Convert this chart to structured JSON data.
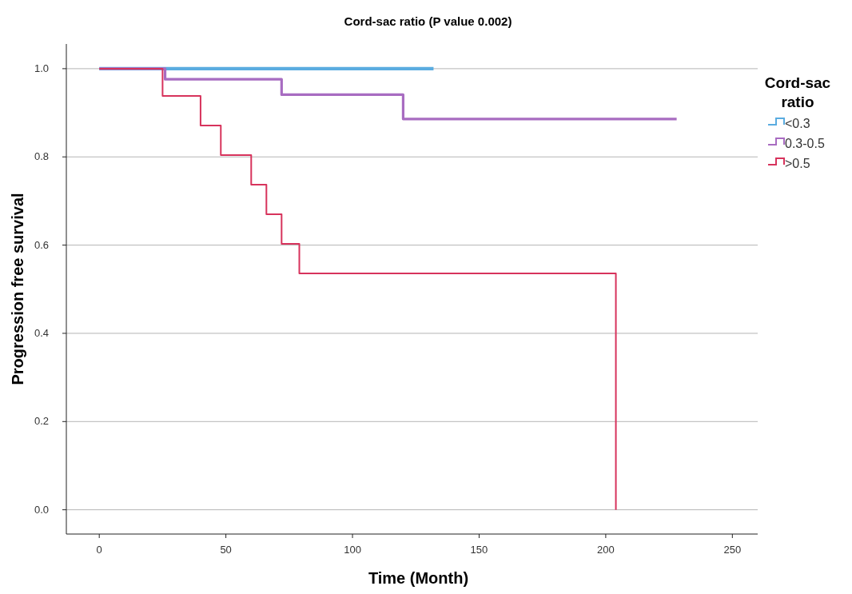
{
  "chart_data": {
    "type": "step",
    "title": "Cord-sac ratio (P value 0.002)",
    "xlabel": "Time (Month)",
    "ylabel": "Progression free survival",
    "legend_title": "Cord-sac ratio",
    "legend": "right",
    "grid": "y",
    "xlim": [
      -13,
      260
    ],
    "xticks": [
      0,
      50,
      100,
      150,
      200,
      250
    ],
    "ylim": [
      -0.055,
      1.056
    ],
    "yticks": [
      {
        "value": 0,
        "label": "0.0"
      },
      0.2,
      0.4,
      0.6,
      0.8,
      {
        "value": 1,
        "label": "1.0"
      }
    ],
    "series": [
      {
        "name": "<0.3",
        "color": "#5aace0",
        "x": [
          0,
          132
        ],
        "values": [
          1,
          1
        ]
      },
      {
        "name": "0.3-0.5",
        "color": "#a86cc1",
        "x": [
          0,
          26,
          72,
          120,
          228
        ],
        "values": [
          1,
          0.976,
          0.941,
          0.886,
          0.886
        ]
      },
      {
        "name": ">0.5",
        "color": "#d7335c",
        "x": [
          0,
          25,
          40,
          48,
          60,
          66,
          72,
          79,
          204
        ],
        "values": [
          1,
          0.938,
          0.871,
          0.804,
          0.737,
          0.67,
          0.603,
          0.536,
          0
        ]
      }
    ]
  }
}
